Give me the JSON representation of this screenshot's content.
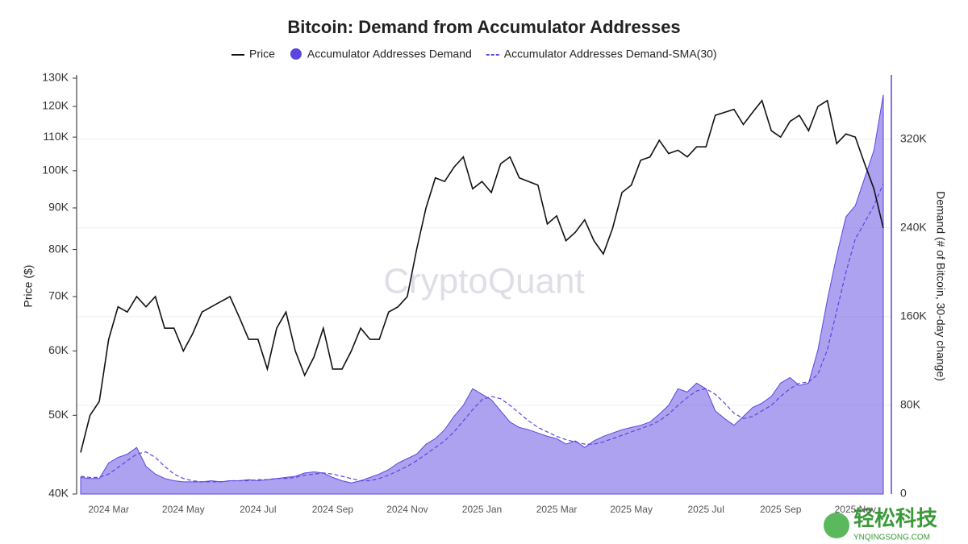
{
  "chart_data": {
    "type": "line",
    "title": "Bitcoin: Demand from Accumulator Addresses",
    "ylabel": "Price ($)",
    "y2label": "Demand (# of Bitcoin, 30-day change)",
    "watermark": "CryptoQuant",
    "logo_text": "轻松科技",
    "logo_url": "YNQINGSONG.COM",
    "legend": "top",
    "ylog": true,
    "grid": true,
    "ylim": [
      40000,
      130000
    ],
    "yticks": [
      {
        "value": 40000,
        "label": "40K"
      },
      {
        "value": 50000,
        "label": "50K"
      },
      {
        "value": 60000,
        "label": "60K"
      },
      {
        "value": 70000,
        "label": "70K"
      },
      {
        "value": 80000,
        "label": "80K"
      },
      {
        "value": 90000,
        "label": "90K"
      },
      {
        "value": 100000,
        "label": "100K"
      },
      {
        "value": 110000,
        "label": "110K"
      },
      {
        "value": 120000,
        "label": "120K"
      },
      {
        "value": 130000,
        "label": "130K"
      }
    ],
    "y2lim": [
      0,
      375000
    ],
    "y2ticks": [
      0,
      {
        "value": 80000,
        "label": "80K"
      },
      {
        "value": 160000,
        "label": "160K"
      },
      {
        "value": 240000,
        "label": "240K"
      },
      {
        "value": 320000,
        "label": "320K"
      }
    ],
    "categories": [
      null,
      null,
      null,
      "2024 Mar",
      null,
      null,
      null,
      null,
      null,
      null,
      null,
      "2024 May",
      null,
      null,
      null,
      null,
      null,
      null,
      null,
      "2024 Jul",
      null,
      null,
      null,
      null,
      null,
      null,
      null,
      "2024 Sep",
      null,
      null,
      null,
      null,
      null,
      null,
      null,
      "2024 Nov",
      null,
      null,
      null,
      null,
      null,
      null,
      null,
      "2025 Jan",
      null,
      null,
      null,
      null,
      null,
      null,
      null,
      "2025 Mar",
      null,
      null,
      null,
      null,
      null,
      null,
      null,
      "2025 May",
      null,
      null,
      null,
      null,
      null,
      null,
      null,
      "2025 Jul",
      null,
      null,
      null,
      null,
      null,
      null,
      null,
      "2025 Sep",
      null,
      null,
      null,
      null,
      null,
      null,
      null,
      "2025 Nov",
      null,
      null,
      null
    ],
    "series": [
      {
        "name": "Accumulator Addresses Demand",
        "color": "#5b45e0",
        "style": "area",
        "axis": "y2",
        "values": [
          15000,
          14000,
          14000,
          28000,
          33000,
          36000,
          42000,
          25000,
          18000,
          14000,
          12000,
          11000,
          11000,
          11000,
          12000,
          11000,
          12000,
          12000,
          13000,
          12000,
          13000,
          14000,
          15000,
          16000,
          19000,
          20000,
          19000,
          15000,
          12000,
          10000,
          12000,
          15000,
          18000,
          22000,
          28000,
          32000,
          36000,
          45000,
          50000,
          58000,
          70000,
          80000,
          95000,
          90000,
          85000,
          75000,
          65000,
          60000,
          58000,
          55000,
          52000,
          50000,
          45000,
          48000,
          42000,
          48000,
          52000,
          55000,
          58000,
          60000,
          62000,
          65000,
          72000,
          80000,
          95000,
          92000,
          100000,
          95000,
          75000,
          68000,
          62000,
          70000,
          78000,
          82000,
          88000,
          100000,
          105000,
          98000,
          100000,
          130000,
          175000,
          215000,
          250000,
          260000,
          285000,
          310000,
          360000
        ]
      },
      {
        "name": "Accumulator Addresses Demand-SMA(30)",
        "color": "#5b45e0",
        "style": "dashed",
        "axis": "y2",
        "values": [
          16000,
          15000,
          15000,
          18000,
          24000,
          30000,
          36000,
          38000,
          33000,
          25000,
          18000,
          14000,
          12000,
          11000,
          11000,
          11000,
          12000,
          12000,
          12000,
          13000,
          13000,
          14000,
          14000,
          15000,
          17000,
          18000,
          19000,
          18000,
          16000,
          14000,
          12000,
          12000,
          14000,
          17000,
          21000,
          25000,
          30000,
          36000,
          42000,
          48000,
          56000,
          66000,
          76000,
          85000,
          88000,
          86000,
          80000,
          73000,
          66000,
          60000,
          56000,
          52000,
          49000,
          47000,
          45000,
          45000,
          47000,
          50000,
          53000,
          56000,
          59000,
          62000,
          66000,
          72000,
          80000,
          87000,
          93000,
          95000,
          90000,
          82000,
          73000,
          68000,
          70000,
          75000,
          80000,
          88000,
          95000,
          100000,
          101000,
          108000,
          130000,
          165000,
          200000,
          230000,
          245000,
          260000,
          280000
        ]
      },
      {
        "name": "Price",
        "color": "#111111",
        "style": "line",
        "axis": "y",
        "values": [
          45000,
          50000,
          52000,
          62000,
          68000,
          67000,
          70000,
          68000,
          70000,
          64000,
          64000,
          60000,
          63000,
          67000,
          68000,
          69000,
          70000,
          66000,
          62000,
          62000,
          57000,
          64000,
          67000,
          60000,
          56000,
          59000,
          64000,
          57000,
          57000,
          60000,
          64000,
          62000,
          62000,
          67000,
          68000,
          70000,
          80000,
          90000,
          98000,
          97000,
          101000,
          104000,
          95000,
          97000,
          94000,
          102000,
          104000,
          98000,
          97000,
          96000,
          86000,
          88000,
          82000,
          84000,
          87000,
          82000,
          79000,
          85000,
          94000,
          96000,
          103000,
          104000,
          109000,
          105000,
          106000,
          104000,
          107000,
          107000,
          117000,
          118000,
          119000,
          114000,
          118000,
          122000,
          112000,
          110000,
          115000,
          117000,
          112000,
          120000,
          122000,
          108000,
          111000,
          110000,
          102000,
          95000,
          85000
        ]
      }
    ]
  }
}
